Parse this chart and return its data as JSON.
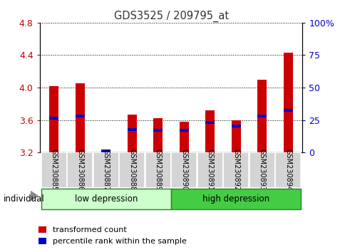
{
  "title": "GDS3525 / 209795_at",
  "samples": [
    "GSM230885",
    "GSM230886",
    "GSM230887",
    "GSM230888",
    "GSM230889",
    "GSM230890",
    "GSM230891",
    "GSM230892",
    "GSM230893",
    "GSM230894"
  ],
  "red_values": [
    4.02,
    4.05,
    3.21,
    3.67,
    3.62,
    3.58,
    3.72,
    3.6,
    4.1,
    4.43
  ],
  "blue_values": [
    3.62,
    3.65,
    3.22,
    3.48,
    3.47,
    3.47,
    3.57,
    3.53,
    3.65,
    3.72
  ],
  "ymin": 3.2,
  "ymax": 4.8,
  "yticks": [
    3.2,
    3.6,
    4.0,
    4.4,
    4.8
  ],
  "right_yticks": [
    0,
    25,
    50,
    75,
    100
  ],
  "right_yticklabels": [
    "0",
    "25",
    "50",
    "75",
    "100%"
  ],
  "group_low_label": "low depression",
  "group_low_color": "#ccffcc",
  "group_high_label": "high depression",
  "group_high_color": "#44cc44",
  "bar_color": "#cc0000",
  "marker_color": "#0000cc",
  "background_color": "#ffffff",
  "title_color": "#333333",
  "left_tick_color": "#cc0000",
  "right_tick_color": "#0000cc",
  "legend_red": "transformed count",
  "legend_blue": "percentile rank within the sample",
  "individual_label": "individual",
  "bar_width": 0.35
}
